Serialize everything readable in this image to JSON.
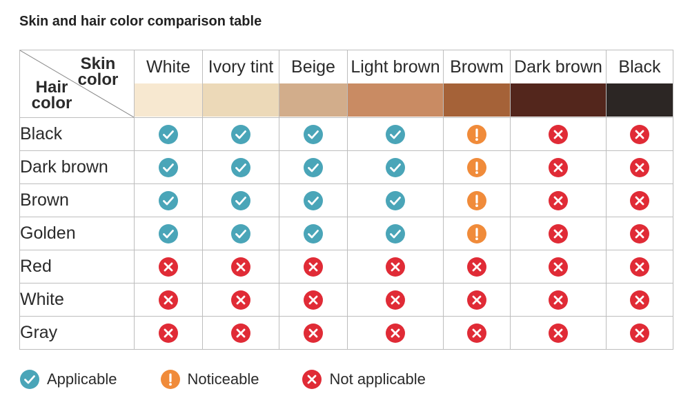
{
  "title": "Skin and hair color comparison table",
  "corner": {
    "skin_label_1": "Skin",
    "skin_label_2": "color",
    "hair_label_1": "Hair",
    "hair_label_2": "color"
  },
  "skin_tones": [
    {
      "name": "White",
      "color": "#f7e8d0"
    },
    {
      "name": "Ivory tint",
      "color": "#ecd9b8"
    },
    {
      "name": "Beige",
      "color": "#d2ad8b"
    },
    {
      "name": "Light brown",
      "color": "#c98b63"
    },
    {
      "name": "Browm",
      "color": "#a56238"
    },
    {
      "name": "Dark brown",
      "color": "#53261c"
    },
    {
      "name": "Black",
      "color": "#2c2624"
    }
  ],
  "rows": [
    {
      "hair": "Black",
      "status": [
        "applicable",
        "applicable",
        "applicable",
        "applicable",
        "noticeable",
        "not_applicable",
        "not_applicable"
      ]
    },
    {
      "hair": "Dark brown",
      "status": [
        "applicable",
        "applicable",
        "applicable",
        "applicable",
        "noticeable",
        "not_applicable",
        "not_applicable"
      ]
    },
    {
      "hair": "Brown",
      "status": [
        "applicable",
        "applicable",
        "applicable",
        "applicable",
        "noticeable",
        "not_applicable",
        "not_applicable"
      ]
    },
    {
      "hair": "Golden",
      "status": [
        "applicable",
        "applicable",
        "applicable",
        "applicable",
        "noticeable",
        "not_applicable",
        "not_applicable"
      ]
    },
    {
      "hair": "Red",
      "status": [
        "not_applicable",
        "not_applicable",
        "not_applicable",
        "not_applicable",
        "not_applicable",
        "not_applicable",
        "not_applicable"
      ]
    },
    {
      "hair": "White",
      "status": [
        "not_applicable",
        "not_applicable",
        "not_applicable",
        "not_applicable",
        "not_applicable",
        "not_applicable",
        "not_applicable"
      ]
    },
    {
      "hair": "Gray",
      "status": [
        "not_applicable",
        "not_applicable",
        "not_applicable",
        "not_applicable",
        "not_applicable",
        "not_applicable",
        "not_applicable"
      ]
    }
  ],
  "legend": [
    {
      "status": "applicable",
      "label": "Applicable",
      "icon": "check-circle-icon"
    },
    {
      "status": "noticeable",
      "label": "Noticeable",
      "icon": "exclamation-circle-icon"
    },
    {
      "status": "not_applicable",
      "label": "Not applicable",
      "icon": "x-circle-icon"
    }
  ],
  "colors": {
    "applicable": "#4aa5b8",
    "noticeable": "#f08b3a",
    "not_applicable": "#e02b36",
    "border": "#bdbdbd"
  }
}
